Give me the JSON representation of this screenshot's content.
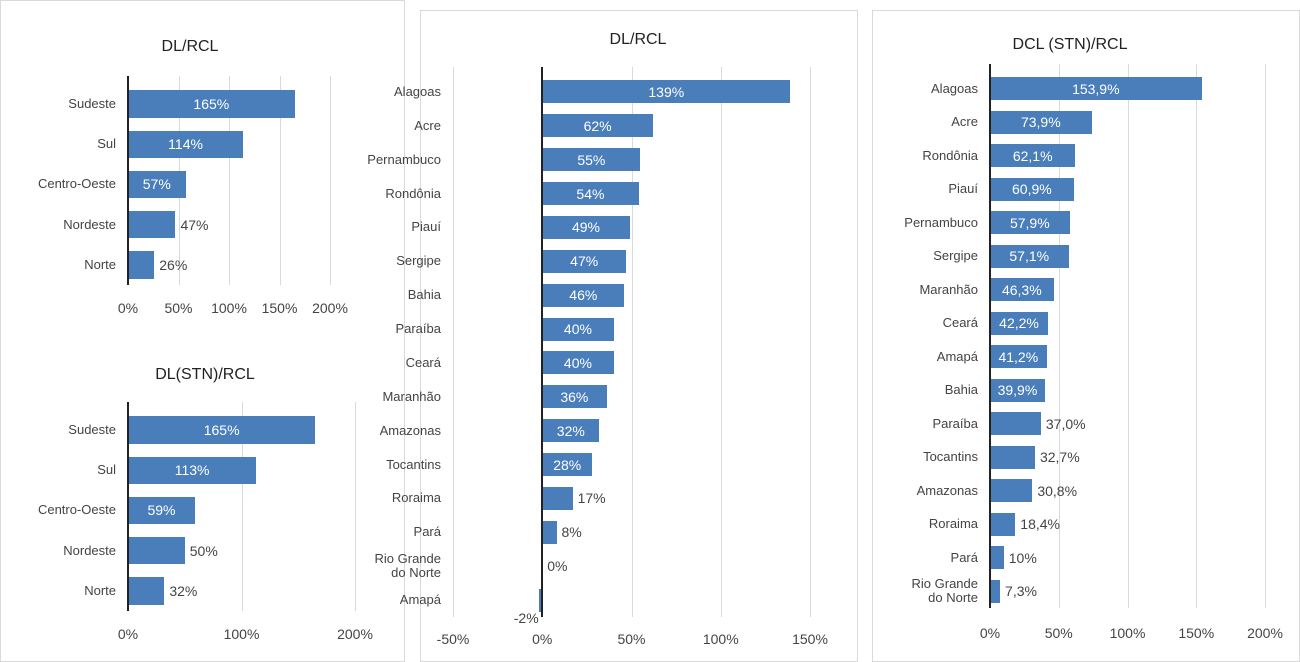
{
  "chart_data": [
    {
      "type": "bar",
      "title": "DL/RCL",
      "categories": [
        "Sudeste",
        "Sul",
        "Centro-Oeste",
        "Nordeste",
        "Norte"
      ],
      "values": [
        165,
        114,
        57,
        47,
        26
      ],
      "value_labels": [
        "165%",
        "114%",
        "57%",
        "47%",
        "26%"
      ],
      "color": "#4a7ebb",
      "xlim": [
        0,
        200
      ],
      "xticks": [
        {
          "value": 0,
          "label": "0%"
        },
        {
          "value": 50,
          "label": "50%"
        },
        {
          "value": 100,
          "label": "100%"
        },
        {
          "value": 150,
          "label": "150%"
        },
        {
          "value": 200,
          "label": "200%"
        }
      ],
      "grid": true
    },
    {
      "type": "bar",
      "title": "DL(STN)/RCL",
      "categories": [
        "Sudeste",
        "Sul",
        "Centro-Oeste",
        "Nordeste",
        "Norte"
      ],
      "values": [
        165,
        113,
        59,
        50,
        32
      ],
      "value_labels": [
        "165%",
        "113%",
        "59%",
        "50%",
        "32%"
      ],
      "color": "#4a7ebb",
      "xlim": [
        0,
        200
      ],
      "xticks": [
        {
          "value": 0,
          "label": "0%"
        },
        {
          "value": 100,
          "label": "100%"
        },
        {
          "value": 200,
          "label": "200%"
        }
      ],
      "grid": true
    },
    {
      "type": "bar",
      "title": "DL/RCL",
      "categories": [
        "Alagoas",
        "Acre",
        "Pernambuco",
        "Rondônia",
        "Piauí",
        "Sergipe",
        "Bahia",
        "Paraíba",
        "Ceará",
        "Maranhão",
        "Amazonas",
        "Tocantins",
        "Roraima",
        "Pará",
        "Rio Grande do Norte",
        "Amapá"
      ],
      "values": [
        139,
        62,
        55,
        54,
        49,
        47,
        46,
        40,
        40,
        36,
        32,
        28,
        17,
        8,
        0,
        -2
      ],
      "value_labels": [
        "139%",
        "62%",
        "55%",
        "54%",
        "49%",
        "47%",
        "46%",
        "40%",
        "40%",
        "36%",
        "32%",
        "28%",
        "17%",
        "8%",
        "0%",
        "-2%"
      ],
      "color": "#4a7ebb",
      "xlim": [
        -50,
        150
      ],
      "xticks": [
        {
          "value": -50,
          "label": "-50%"
        },
        {
          "value": 0,
          "label": "0%"
        },
        {
          "value": 50,
          "label": "50%"
        },
        {
          "value": 100,
          "label": "100%"
        },
        {
          "value": 150,
          "label": "150%"
        }
      ],
      "grid": true
    },
    {
      "type": "bar",
      "title": "DCL (STN)/RCL",
      "categories": [
        "Alagoas",
        "Acre",
        "Rondônia",
        "Piauí",
        "Pernambuco",
        "Sergipe",
        "Maranhão",
        "Ceará",
        "Amapá",
        "Bahia",
        "Paraíba",
        "Tocantins",
        "Amazonas",
        "Roraima",
        "Pará",
        "Rio Grande do Norte"
      ],
      "values": [
        153.9,
        73.9,
        62.1,
        60.9,
        57.9,
        57.1,
        46.3,
        42.2,
        41.2,
        39.9,
        37.0,
        32.7,
        30.8,
        18.4,
        10,
        7.3
      ],
      "value_labels": [
        "153,9%",
        "73,9%",
        "62,1%",
        "60,9%",
        "57,9%",
        "57,1%",
        "46,3%",
        "42,2%",
        "41,2%",
        "39,9%",
        "37,0%",
        "32,7%",
        "30,8%",
        "18,4%",
        "10%",
        "7,3%"
      ],
      "color": "#4a7ebb",
      "xlim": [
        0,
        200
      ],
      "xticks": [
        {
          "value": 0,
          "label": "0%"
        },
        {
          "value": 50,
          "label": "50%"
        },
        {
          "value": 100,
          "label": "100%"
        },
        {
          "value": 150,
          "label": "150%"
        },
        {
          "value": 200,
          "label": "200%"
        }
      ],
      "grid": true
    }
  ]
}
